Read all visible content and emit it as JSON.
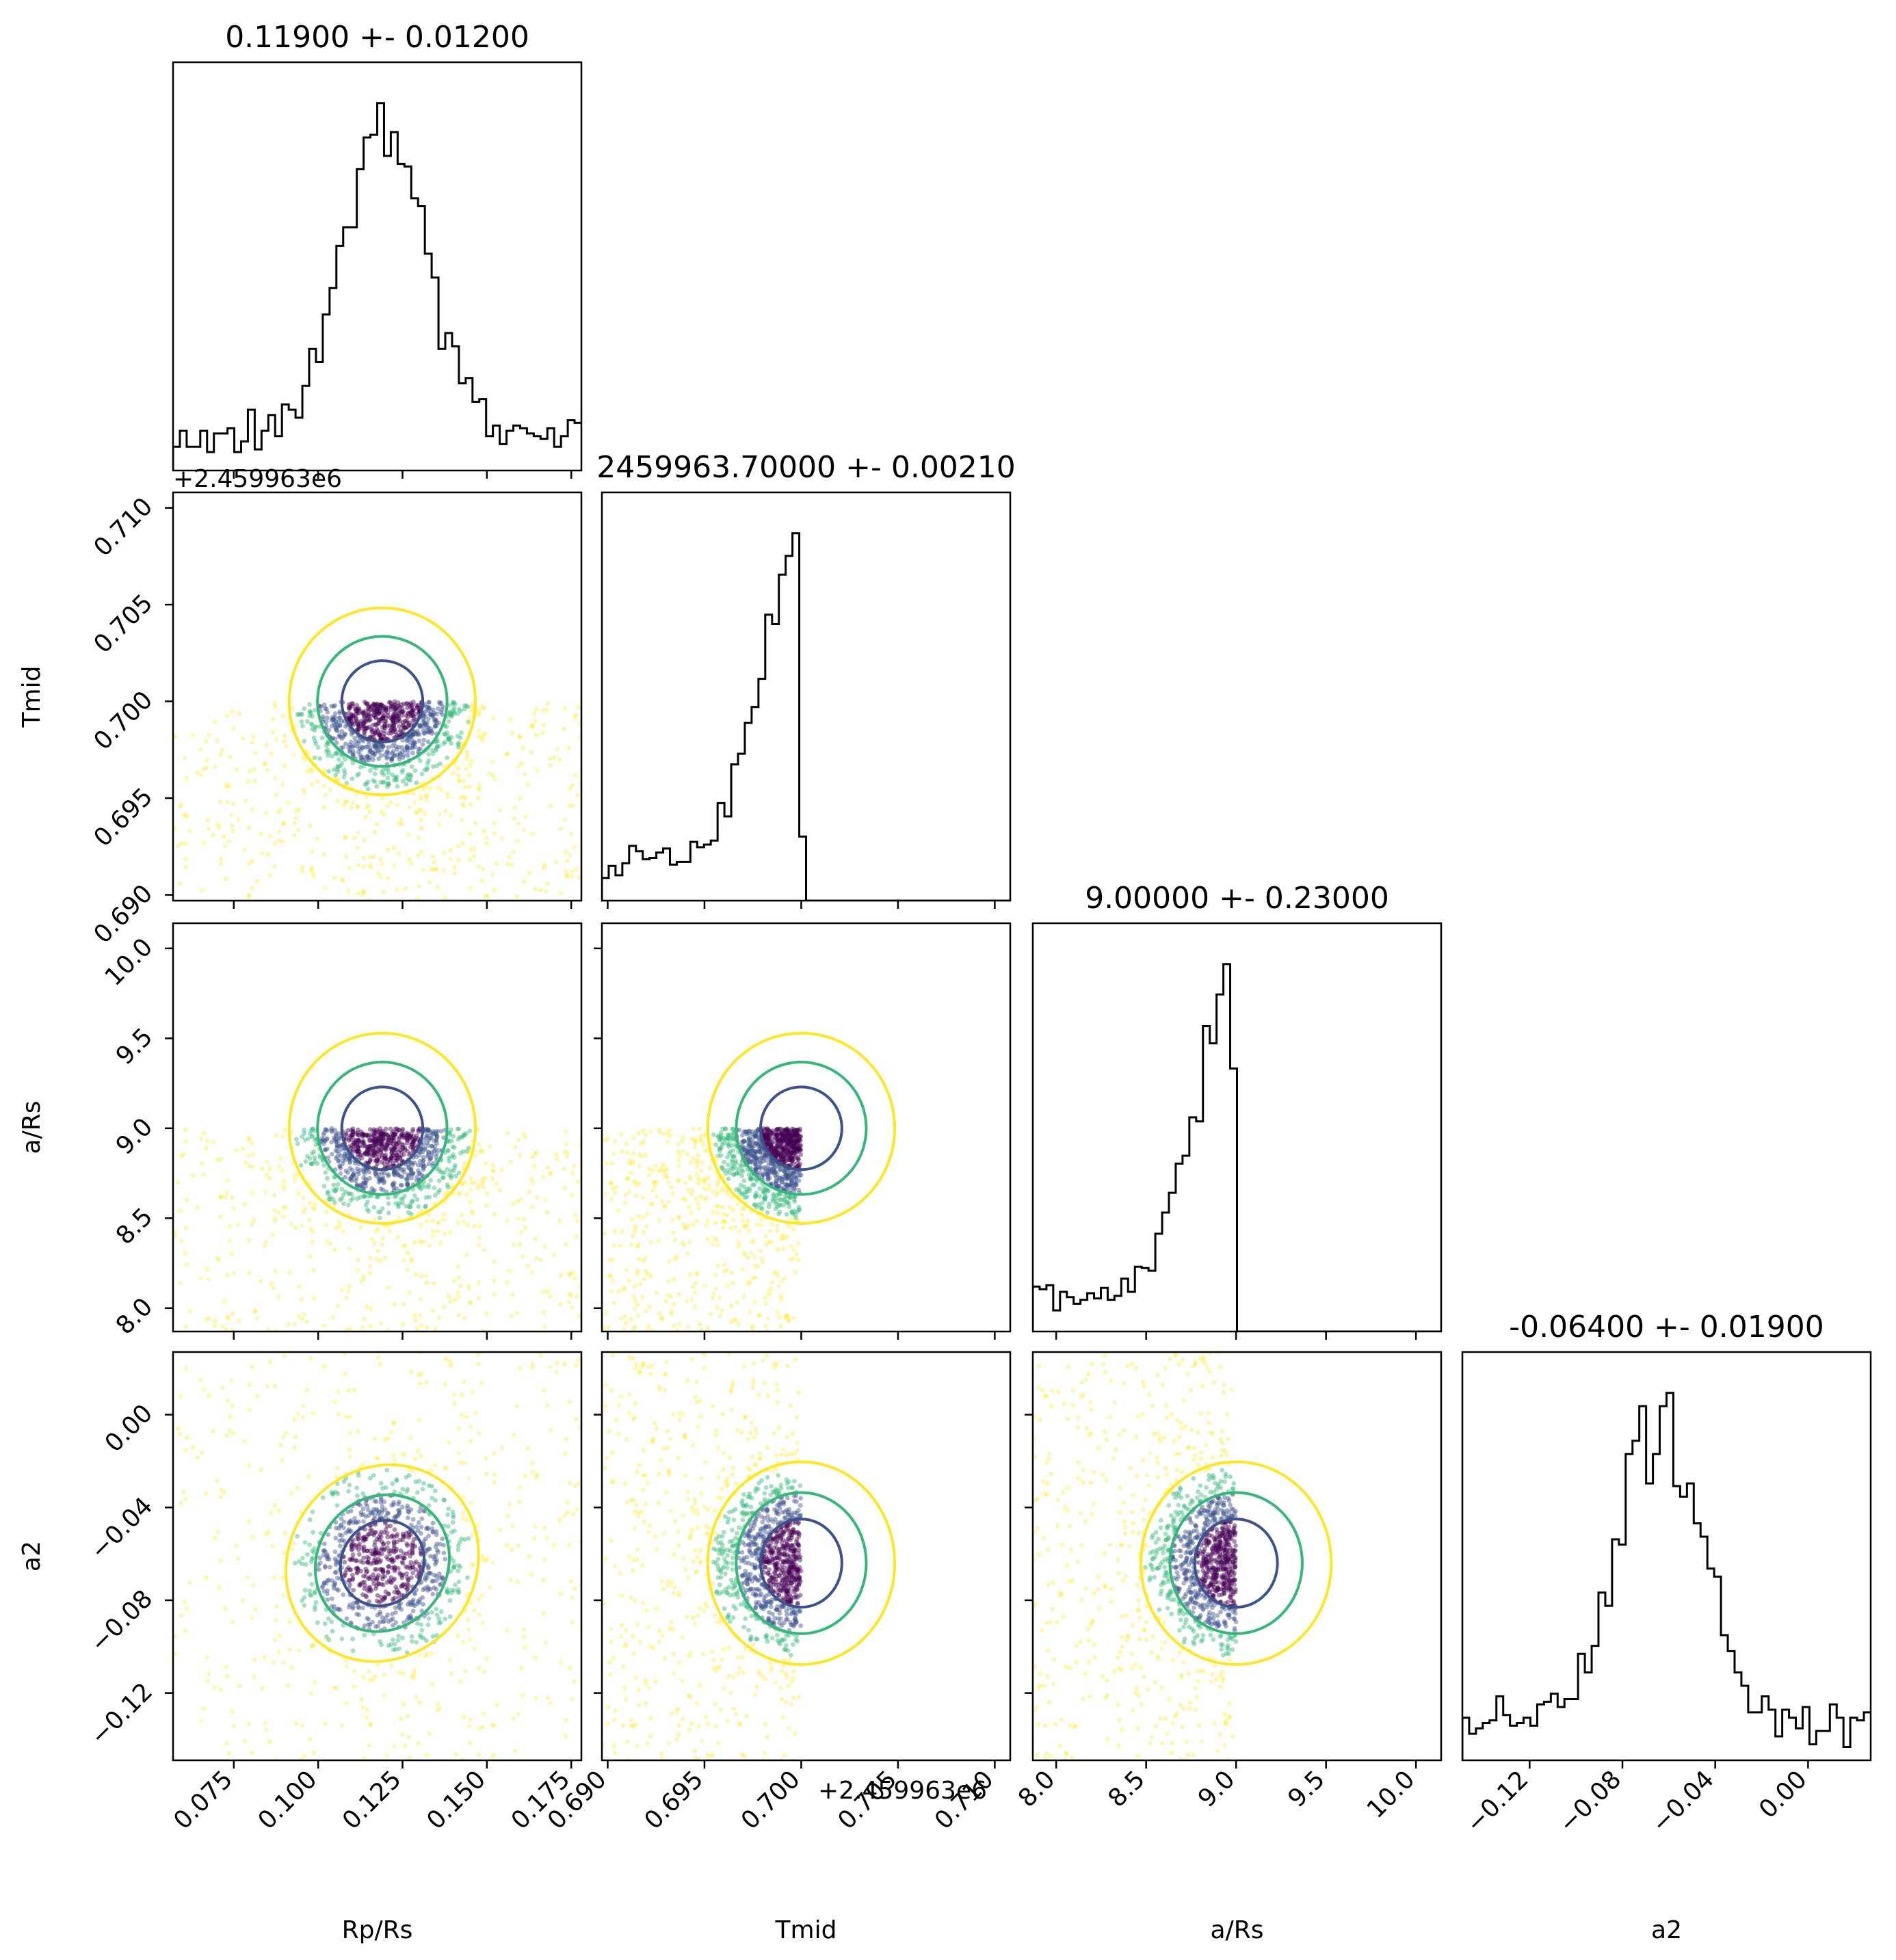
{
  "chart_data": {
    "type": "corner",
    "parameters": [
      {
        "label": "R",
        "sub": "p",
        "suffix": "/R",
        "suffix_sub": "s",
        "display": "Rp/Rs",
        "range": [
          0.057,
          0.178
        ],
        "ticks": [
          0.075,
          0.1,
          0.125,
          0.15,
          0.175
        ],
        "tick_labels": [
          "0.075",
          "0.100",
          "0.125",
          "0.150",
          "0.175"
        ]
      },
      {
        "label": "T",
        "sub": "mid",
        "display": "Tmid",
        "offset_label": "+2.459963e6",
        "range": [
          0.6897,
          0.7108
        ],
        "ticks": [
          0.69,
          0.695,
          0.7,
          0.705,
          0.71
        ],
        "tick_labels": [
          "0.690",
          "0.695",
          "0.700",
          "0.705",
          "0.710"
        ]
      },
      {
        "label": "a/R",
        "sub": "s",
        "display": "a/Rs",
        "range": [
          7.87,
          10.14
        ],
        "ticks": [
          8.0,
          8.5,
          9.0,
          9.5,
          10.0
        ],
        "tick_labels": [
          "8.0",
          "8.5",
          "9.0",
          "9.5",
          "10.0"
        ]
      },
      {
        "label": "a",
        "sub": "2",
        "italic": true,
        "display": "a2",
        "range": [
          -0.149,
          0.027
        ],
        "ticks": [
          -0.12,
          -0.08,
          -0.04,
          0.0
        ],
        "tick_labels": [
          "−0.12",
          "−0.08",
          "−0.04",
          "0.00"
        ]
      }
    ],
    "titles": [
      "0.11900 +- 0.01200",
      "2459963.70000 +- 0.00210",
      "9.00000 +- 0.23000",
      "-0.06400 +- 0.01900"
    ],
    "offset_text": "+2.459963e6",
    "posterior": {
      "means": [
        0.119,
        0.7,
        9.0,
        -0.064
      ],
      "sigmas": [
        0.012,
        0.0021,
        0.23,
        0.019
      ],
      "upper_bounds": [
        null,
        0.7,
        9.0,
        null
      ]
    },
    "contour_colors": [
      "#440154",
      "#3b528b",
      "#21918c",
      "#35b779",
      "#fde725"
    ],
    "histogram_color": "#000000"
  }
}
